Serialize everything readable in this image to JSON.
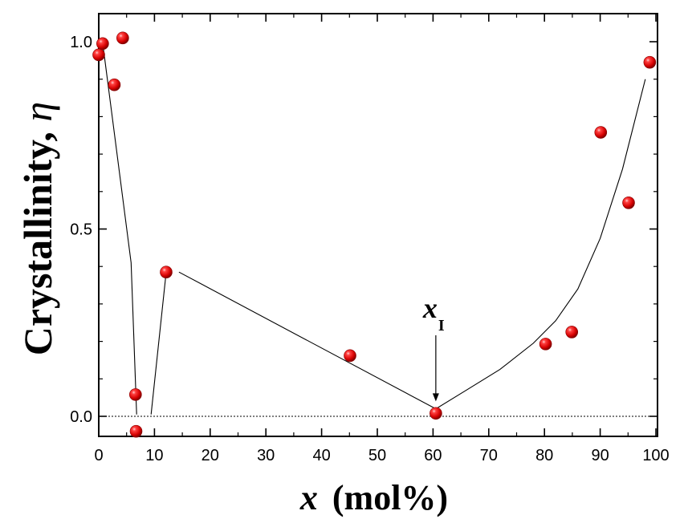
{
  "chart_data": {
    "type": "scatter",
    "xlabel_var": "x",
    "xlabel_unit": "(mol%)",
    "ylabel_text": "Crystallinity, ",
    "ylabel_var": "η",
    "xlim": [
      0,
      100
    ],
    "ylim": [
      -0.05,
      1.05
    ],
    "x_ticks": [
      0,
      10,
      20,
      30,
      40,
      50,
      60,
      70,
      80,
      90,
      100
    ],
    "x_tick_labels": [
      "0",
      "10",
      "20",
      "30",
      "40",
      "50",
      "60",
      "70",
      "80",
      "90",
      "100"
    ],
    "y_ticks": [
      0.0,
      0.5,
      1.0
    ],
    "y_tick_labels": [
      "0.0",
      "0.5",
      "1.0"
    ],
    "series": [
      {
        "points": [
          {
            "x": 0,
            "y": 0.965
          },
          {
            "x": 0.7,
            "y": 0.995
          },
          {
            "x": 2.8,
            "y": 0.885
          },
          {
            "x": 4.3,
            "y": 1.01
          },
          {
            "x": 6.6,
            "y": 0.058
          },
          {
            "x": 6.7,
            "y": -0.04
          },
          {
            "x": 12.1,
            "y": 0.385
          },
          {
            "x": 45.1,
            "y": 0.162
          },
          {
            "x": 60.5,
            "y": 0.008
          },
          {
            "x": 80.2,
            "y": 0.193
          },
          {
            "x": 84.9,
            "y": 0.225
          },
          {
            "x": 90.1,
            "y": 0.758
          },
          {
            "x": 95.1,
            "y": 0.57
          },
          {
            "x": 98.9,
            "y": 0.945
          }
        ]
      }
    ],
    "guide_lines": [
      {
        "x": [
          0.8,
          5.8,
          6.8
        ],
        "y": [
          0.985,
          0.41,
          0.005
        ]
      },
      {
        "x": [
          9.4,
          12.1
        ],
        "y": [
          0.005,
          0.385
        ]
      },
      {
        "x": [
          14.4,
          60.5
        ],
        "y": [
          0.385,
          0.02
        ]
      },
      {
        "x": [
          60.5,
          66,
          72,
          78,
          82,
          86,
          90,
          94,
          98.1
        ],
        "y": [
          0.02,
          0.07,
          0.125,
          0.195,
          0.255,
          0.34,
          0.475,
          0.66,
          0.9
        ]
      }
    ],
    "reference_line": {
      "y": 0.0,
      "style": "dotted"
    },
    "annotation": {
      "var": "x",
      "sub": "I",
      "target_x": 60.5,
      "target_y": 0.04
    }
  }
}
